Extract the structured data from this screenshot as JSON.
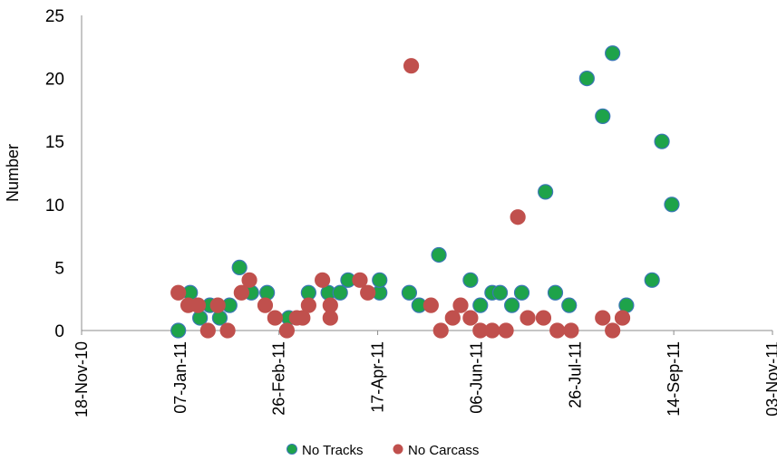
{
  "chart_data": {
    "type": "scatter",
    "title": "",
    "xlabel": "",
    "ylabel": "Number",
    "ylim": [
      0,
      25
    ],
    "yticks": [
      0,
      5,
      10,
      15,
      20,
      25
    ],
    "xlim": [
      "2010-11-18",
      "2011-11-03"
    ],
    "xtick_labels": [
      "18-Nov-10",
      "07-Jan-11",
      "26-Feb-11",
      "17-Apr-11",
      "06-Jun-11",
      "26-Jul-11",
      "14-Sep-11",
      "03-Nov-11"
    ],
    "grid": false,
    "legend_position": "bottom",
    "series": [
      {
        "name": "No Tracks",
        "color": "#1ea34a",
        "edge_color": "#3a77b5",
        "points": [
          {
            "x": "2011-01-06",
            "y": 0
          },
          {
            "x": "2011-01-12",
            "y": 3
          },
          {
            "x": "2011-01-17",
            "y": 1
          },
          {
            "x": "2011-01-22",
            "y": 2
          },
          {
            "x": "2011-01-27",
            "y": 1
          },
          {
            "x": "2011-02-01",
            "y": 2
          },
          {
            "x": "2011-02-06",
            "y": 5
          },
          {
            "x": "2011-02-12",
            "y": 3
          },
          {
            "x": "2011-02-20",
            "y": 3
          },
          {
            "x": "2011-03-03",
            "y": 1
          },
          {
            "x": "2011-03-13",
            "y": 3
          },
          {
            "x": "2011-03-23",
            "y": 3
          },
          {
            "x": "2011-03-29",
            "y": 3
          },
          {
            "x": "2011-04-02",
            "y": 4
          },
          {
            "x": "2011-04-18",
            "y": 3
          },
          {
            "x": "2011-04-18",
            "y": 4
          },
          {
            "x": "2011-05-03",
            "y": 3
          },
          {
            "x": "2011-05-08",
            "y": 2
          },
          {
            "x": "2011-05-18",
            "y": 6
          },
          {
            "x": "2011-06-03",
            "y": 4
          },
          {
            "x": "2011-06-08",
            "y": 2
          },
          {
            "x": "2011-06-14",
            "y": 3
          },
          {
            "x": "2011-06-18",
            "y": 3
          },
          {
            "x": "2011-06-24",
            "y": 2
          },
          {
            "x": "2011-06-29",
            "y": 3
          },
          {
            "x": "2011-07-11",
            "y": 11
          },
          {
            "x": "2011-07-16",
            "y": 3
          },
          {
            "x": "2011-07-23",
            "y": 2
          },
          {
            "x": "2011-08-01",
            "y": 20
          },
          {
            "x": "2011-08-09",
            "y": 17
          },
          {
            "x": "2011-08-14",
            "y": 22
          },
          {
            "x": "2011-08-21",
            "y": 2
          },
          {
            "x": "2011-09-03",
            "y": 4
          },
          {
            "x": "2011-09-08",
            "y": 15
          },
          {
            "x": "2011-09-13",
            "y": 10
          }
        ]
      },
      {
        "name": "No Carcass",
        "color": "#c0504d",
        "edge_color": "#c0504d",
        "points": [
          {
            "x": "2011-01-06",
            "y": 3
          },
          {
            "x": "2011-01-11",
            "y": 2
          },
          {
            "x": "2011-01-16",
            "y": 2
          },
          {
            "x": "2011-01-21",
            "y": 0
          },
          {
            "x": "2011-01-26",
            "y": 2
          },
          {
            "x": "2011-01-31",
            "y": 0
          },
          {
            "x": "2011-02-07",
            "y": 3
          },
          {
            "x": "2011-02-11",
            "y": 4
          },
          {
            "x": "2011-02-19",
            "y": 2
          },
          {
            "x": "2011-02-24",
            "y": 1
          },
          {
            "x": "2011-03-02",
            "y": 0
          },
          {
            "x": "2011-03-07",
            "y": 1
          },
          {
            "x": "2011-03-10",
            "y": 1
          },
          {
            "x": "2011-03-13",
            "y": 2
          },
          {
            "x": "2011-03-20",
            "y": 4
          },
          {
            "x": "2011-03-24",
            "y": 2
          },
          {
            "x": "2011-03-24",
            "y": 1
          },
          {
            "x": "2011-04-08",
            "y": 4
          },
          {
            "x": "2011-04-12",
            "y": 3
          },
          {
            "x": "2011-05-04",
            "y": 21
          },
          {
            "x": "2011-05-14",
            "y": 2
          },
          {
            "x": "2011-05-19",
            "y": 0
          },
          {
            "x": "2011-05-25",
            "y": 1
          },
          {
            "x": "2011-05-29",
            "y": 2
          },
          {
            "x": "2011-06-03",
            "y": 1
          },
          {
            "x": "2011-06-08",
            "y": 0
          },
          {
            "x": "2011-06-14",
            "y": 0
          },
          {
            "x": "2011-06-21",
            "y": 0
          },
          {
            "x": "2011-06-27",
            "y": 9
          },
          {
            "x": "2011-07-02",
            "y": 1
          },
          {
            "x": "2011-07-10",
            "y": 1
          },
          {
            "x": "2011-07-17",
            "y": 0
          },
          {
            "x": "2011-07-24",
            "y": 0
          },
          {
            "x": "2011-08-09",
            "y": 1
          },
          {
            "x": "2011-08-14",
            "y": 0
          },
          {
            "x": "2011-08-19",
            "y": 1
          }
        ]
      }
    ]
  }
}
